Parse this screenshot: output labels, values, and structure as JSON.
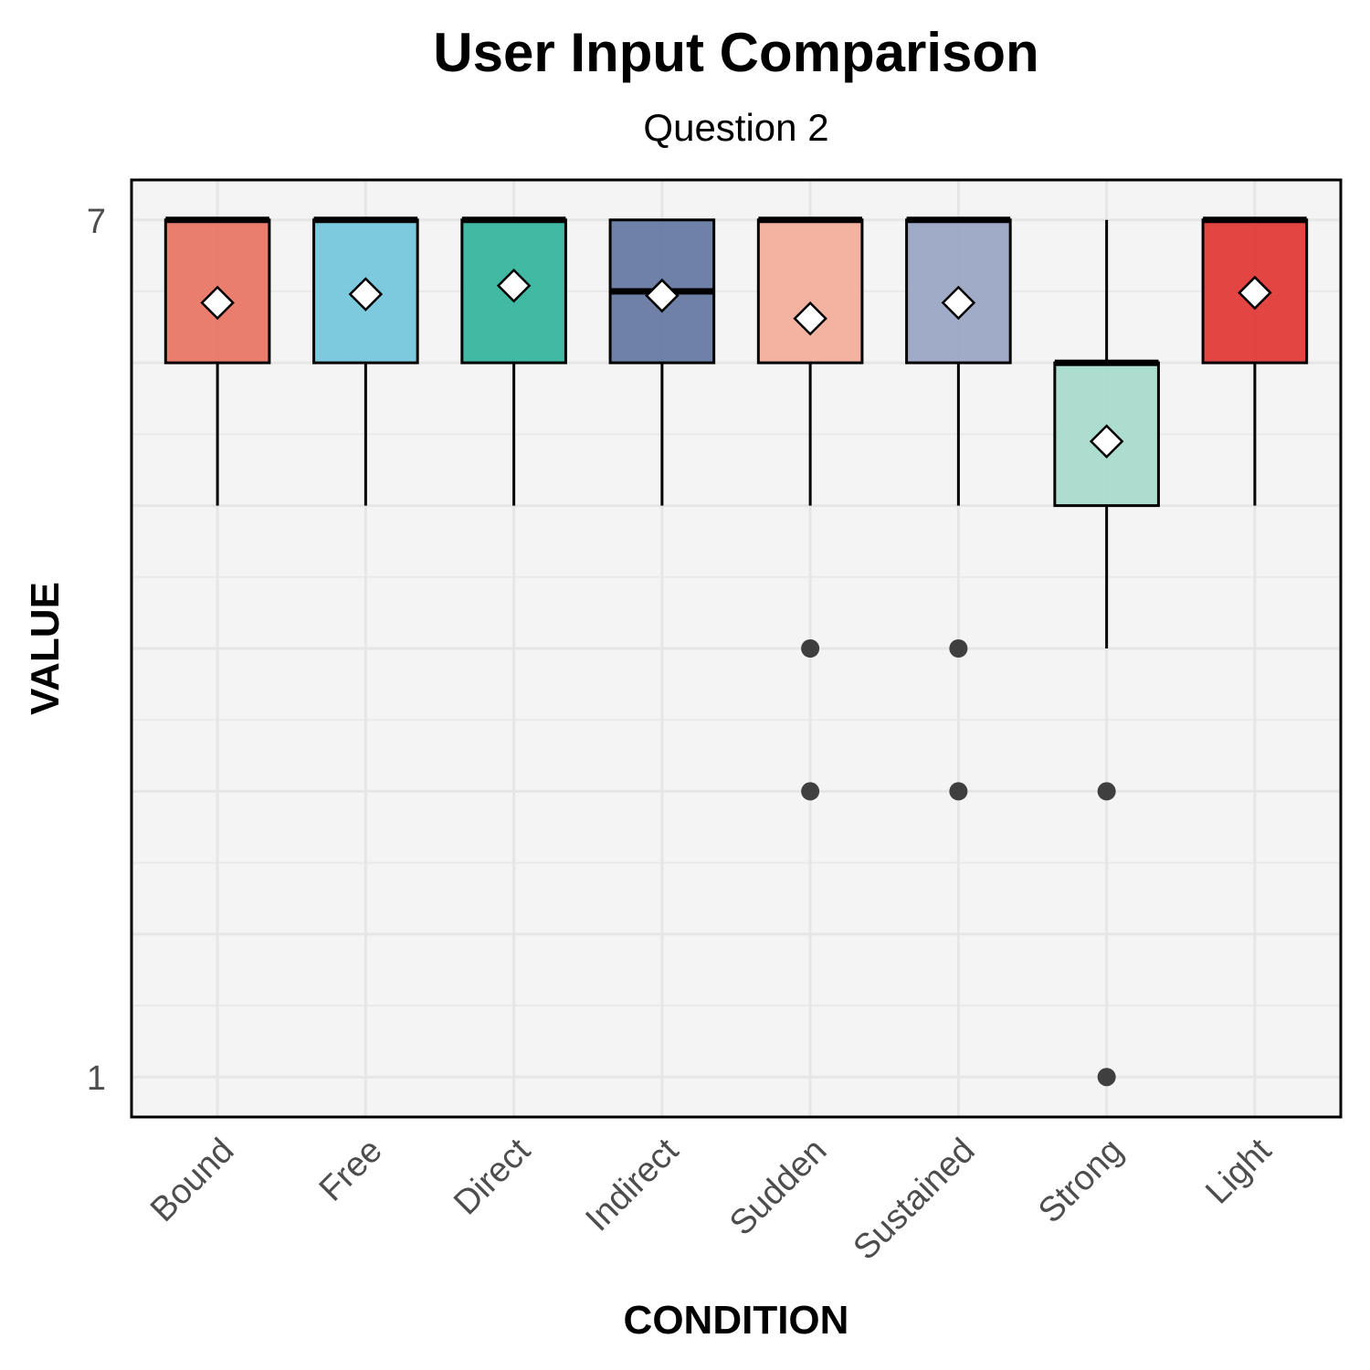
{
  "chart_data": {
    "type": "boxplot",
    "title": "User Input Comparison",
    "subtitle": "Question 2",
    "xlabel": "CONDITION",
    "ylabel": "VALUE",
    "ylim": [
      0.72,
      7.28
    ],
    "yticks": [
      1,
      7
    ],
    "grid": true,
    "categories": [
      "Bound",
      "Free",
      "Direct",
      "Indirect",
      "Sudden",
      "Sustained",
      "Strong",
      "Light"
    ],
    "series": [
      {
        "category": "Bound",
        "color": "#E8705F",
        "whisker_low": 5,
        "q1": 6,
        "median": 7,
        "q3": 7,
        "whisker_high": 7,
        "mean": 6.42,
        "outliers": []
      },
      {
        "category": "Free",
        "color": "#70C5DD",
        "whisker_low": 5,
        "q1": 6,
        "median": 7,
        "q3": 7,
        "whisker_high": 7,
        "mean": 6.48,
        "outliers": []
      },
      {
        "category": "Direct",
        "color": "#2FB39A",
        "whisker_low": 5,
        "q1": 6,
        "median": 7,
        "q3": 7,
        "whisker_high": 7,
        "mean": 6.54,
        "outliers": []
      },
      {
        "category": "Indirect",
        "color": "#61749E",
        "whisker_low": 5,
        "q1": 6,
        "median": 6.5,
        "q3": 7,
        "whisker_high": 7,
        "mean": 6.47,
        "outliers": []
      },
      {
        "category": "Sudden",
        "color": "#F4AC98",
        "whisker_low": 5,
        "q1": 6,
        "median": 7,
        "q3": 7,
        "whisker_high": 7,
        "mean": 6.31,
        "outliers": [
          4,
          3
        ]
      },
      {
        "category": "Sustained",
        "color": "#97A3C2",
        "whisker_low": 5,
        "q1": 6,
        "median": 7,
        "q3": 7,
        "whisker_high": 7,
        "mean": 6.42,
        "outliers": [
          4,
          3
        ]
      },
      {
        "category": "Strong",
        "color": "#A4DACB",
        "whisker_low": 4,
        "q1": 5,
        "median": 6,
        "q3": 6,
        "whisker_high": 7,
        "mean": 5.45,
        "outliers": [
          3,
          1
        ]
      },
      {
        "category": "Light",
        "color": "#E0322F",
        "whisker_low": 5,
        "q1": 6,
        "median": 7,
        "q3": 7,
        "whisker_high": 7,
        "mean": 6.49,
        "outliers": []
      }
    ]
  }
}
